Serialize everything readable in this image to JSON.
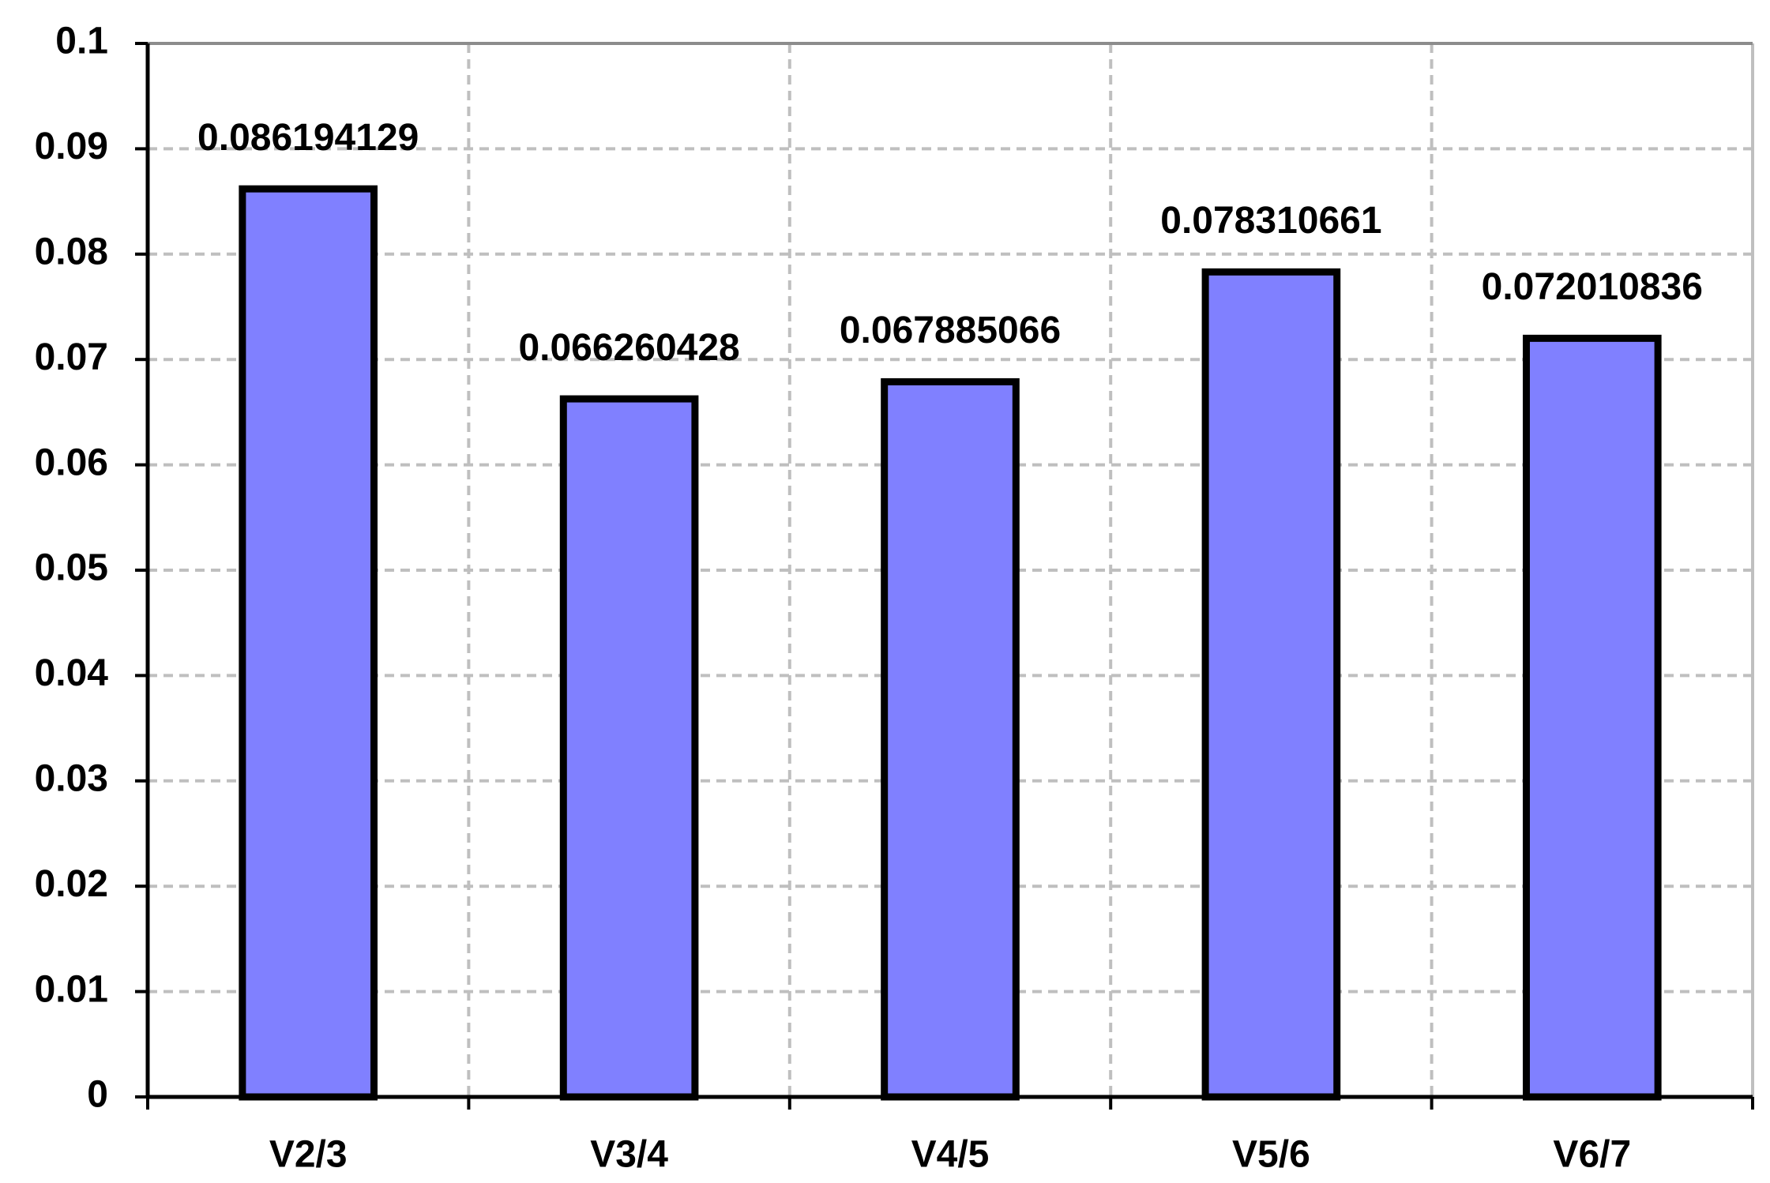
{
  "chart_data": {
    "type": "bar",
    "categories": [
      "V2/3",
      "V3/4",
      "V4/5",
      "V5/6",
      "V6/7"
    ],
    "values": [
      0.086194129,
      0.066260428,
      0.067885066,
      0.078310661,
      0.072010836
    ],
    "color": "#8080ff",
    "ylim": [
      0,
      0.1
    ],
    "yticks": [
      0,
      0.01,
      0.02,
      0.03,
      0.04,
      0.05,
      0.06,
      0.07,
      0.08,
      0.09,
      0.1
    ],
    "grid": true
  }
}
